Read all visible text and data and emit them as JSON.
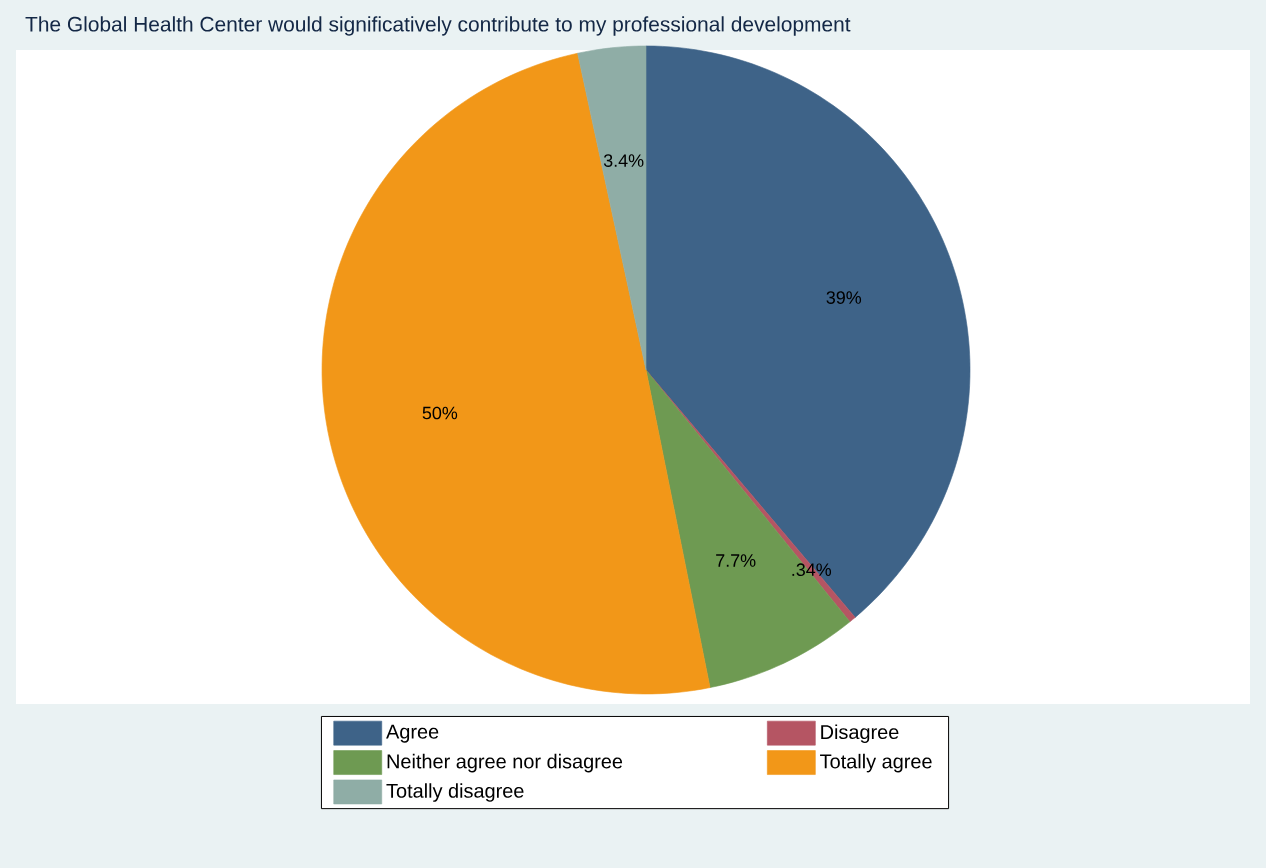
{
  "chart_data": {
    "type": "pie",
    "title": "The Global Health Center would significatively contribute to my professional development",
    "categories": [
      "Agree",
      "Disagree",
      "Neither agree nor disagree",
      "Totally agree",
      "Totally disagree"
    ],
    "values": [
      39,
      0.34,
      7.7,
      50,
      3.4
    ],
    "value_labels": [
      "39%",
      ".34%",
      "7.7%",
      "50%",
      "3.4%"
    ],
    "colors": [
      "#3e6388",
      "#b55563",
      "#6e9a52",
      "#f29718",
      "#8fada6"
    ],
    "legend": "bottom"
  }
}
